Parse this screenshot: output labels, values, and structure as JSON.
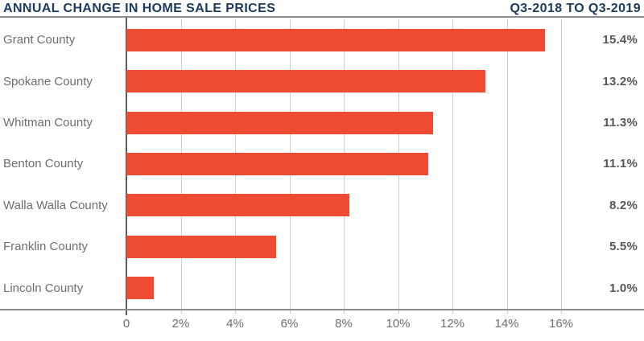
{
  "header": {
    "title": "ANNUAL CHANGE IN HOME SALE PRICES",
    "period": "Q3-2018 TO Q3-2019"
  },
  "chart_data": {
    "type": "bar",
    "orientation": "horizontal",
    "title": "ANNUAL CHANGE IN HOME SALE PRICES",
    "subtitle": "Q3-2018 TO Q3-2019",
    "categories": [
      "Grant County",
      "Spokane County",
      "Whitman County",
      "Benton County",
      "Walla Walla County",
      "Franklin County",
      "Lincoln County"
    ],
    "values": [
      15.4,
      13.2,
      11.3,
      11.1,
      8.2,
      5.5,
      1.0
    ],
    "value_labels": [
      "15.4%",
      "13.2%",
      "11.3%",
      "11.1%",
      "8.2%",
      "5.5%",
      "1.0%"
    ],
    "xlabel": "",
    "ylabel": "",
    "xlim": [
      0,
      16
    ],
    "x_tick_values": [
      0,
      2,
      4,
      6,
      8,
      10,
      12,
      14,
      16
    ],
    "x_tick_labels": [
      "0",
      "2%",
      "4%",
      "6%",
      "8%",
      "10%",
      "12%",
      "14%",
      "16%"
    ],
    "grid": true,
    "legend": "none",
    "bar_color": "#ef4b32"
  },
  "colors": {
    "bar": "#ef4b32",
    "title_navy": "#1b3a5d",
    "category_label_gray": "#6d6e71",
    "value_label_gray": "#55575b",
    "gridline_gray": "#cdced0",
    "axis_gray": "#8a8c8f"
  }
}
